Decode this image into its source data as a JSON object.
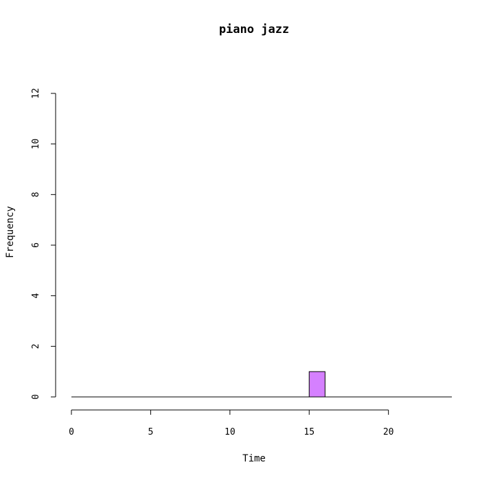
{
  "chart_data": {
    "type": "bar",
    "title": "piano jazz",
    "xlabel": "Time",
    "ylabel": "Frequency",
    "bins": [
      {
        "x0": 0,
        "x1": 1,
        "count": 0
      },
      {
        "x0": 1,
        "x1": 2,
        "count": 0
      },
      {
        "x0": 2,
        "x1": 3,
        "count": 0
      },
      {
        "x0": 3,
        "x1": 4,
        "count": 0
      },
      {
        "x0": 4,
        "x1": 5,
        "count": 0
      },
      {
        "x0": 5,
        "x1": 6,
        "count": 0
      },
      {
        "x0": 6,
        "x1": 7,
        "count": 0
      },
      {
        "x0": 7,
        "x1": 8,
        "count": 0
      },
      {
        "x0": 8,
        "x1": 9,
        "count": 0
      },
      {
        "x0": 9,
        "x1": 10,
        "count": 0
      },
      {
        "x0": 10,
        "x1": 11,
        "count": 0
      },
      {
        "x0": 11,
        "x1": 12,
        "count": 0
      },
      {
        "x0": 12,
        "x1": 13,
        "count": 0
      },
      {
        "x0": 13,
        "x1": 14,
        "count": 0
      },
      {
        "x0": 14,
        "x1": 15,
        "count": 0
      },
      {
        "x0": 15,
        "x1": 16,
        "count": 1
      },
      {
        "x0": 16,
        "x1": 17,
        "count": 0
      },
      {
        "x0": 17,
        "x1": 18,
        "count": 0
      },
      {
        "x0": 18,
        "x1": 19,
        "count": 0
      },
      {
        "x0": 19,
        "x1": 20,
        "count": 0
      },
      {
        "x0": 20,
        "x1": 21,
        "count": 0
      },
      {
        "x0": 21,
        "x1": 22,
        "count": 0
      },
      {
        "x0": 22,
        "x1": 23,
        "count": 0
      },
      {
        "x0": 23,
        "x1": 24,
        "count": 0
      }
    ],
    "xlim": [
      0,
      24
    ],
    "ylim": [
      0,
      12
    ],
    "xticks": [
      "0",
      "5",
      "10",
      "15",
      "20"
    ],
    "yticks": [
      "0",
      "2",
      "4",
      "6",
      "8",
      "10",
      "12"
    ],
    "grid": false,
    "bar_color": "#d580ff",
    "bar_stroke": "#000000"
  }
}
